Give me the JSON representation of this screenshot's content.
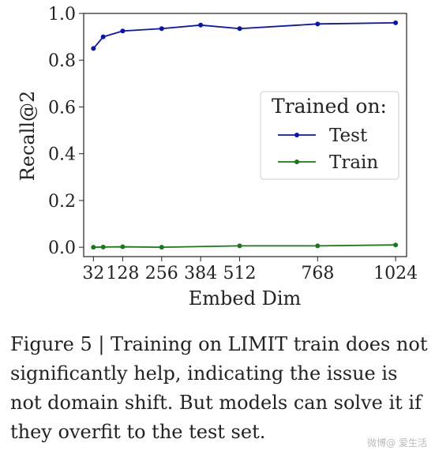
{
  "chart_data": {
    "type": "line",
    "xlabel": "Embed Dim",
    "ylabel": "Recall@2",
    "x_ticks": [
      32,
      128,
      256,
      384,
      512,
      768,
      1024
    ],
    "x_tick_labels": [
      "32",
      "128",
      "256",
      "384",
      "512",
      "768",
      "1024"
    ],
    "y_ticks": [
      0.0,
      0.2,
      0.4,
      0.6,
      0.8,
      1.0
    ],
    "y_tick_labels": [
      "0.0",
      "0.2",
      "0.4",
      "0.6",
      "0.8",
      "1.0"
    ],
    "xlim": [
      0,
      1060
    ],
    "ylim": [
      -0.04,
      1.0
    ],
    "grid": false,
    "legend": {
      "title": "Trained on:",
      "placement": "center-right"
    },
    "series": [
      {
        "name": "Test",
        "color": "#0a14b4",
        "x": [
          32,
          64,
          128,
          256,
          384,
          512,
          768,
          1024
        ],
        "y": [
          0.85,
          0.9,
          0.925,
          0.935,
          0.95,
          0.935,
          0.955,
          0.96
        ]
      },
      {
        "name": "Train",
        "color": "#1a781a",
        "x": [
          32,
          64,
          128,
          256,
          512,
          768,
          1024
        ],
        "y": [
          0.0,
          0.001,
          0.002,
          0.0,
          0.006,
          0.006,
          0.01
        ]
      }
    ]
  },
  "caption": "Figure 5 | Training on LIMIT train does not significantly help, indicating the issue is not domain shift. But models can solve it if they overfit to the test set.",
  "watermark": "微博@ 爱生活"
}
